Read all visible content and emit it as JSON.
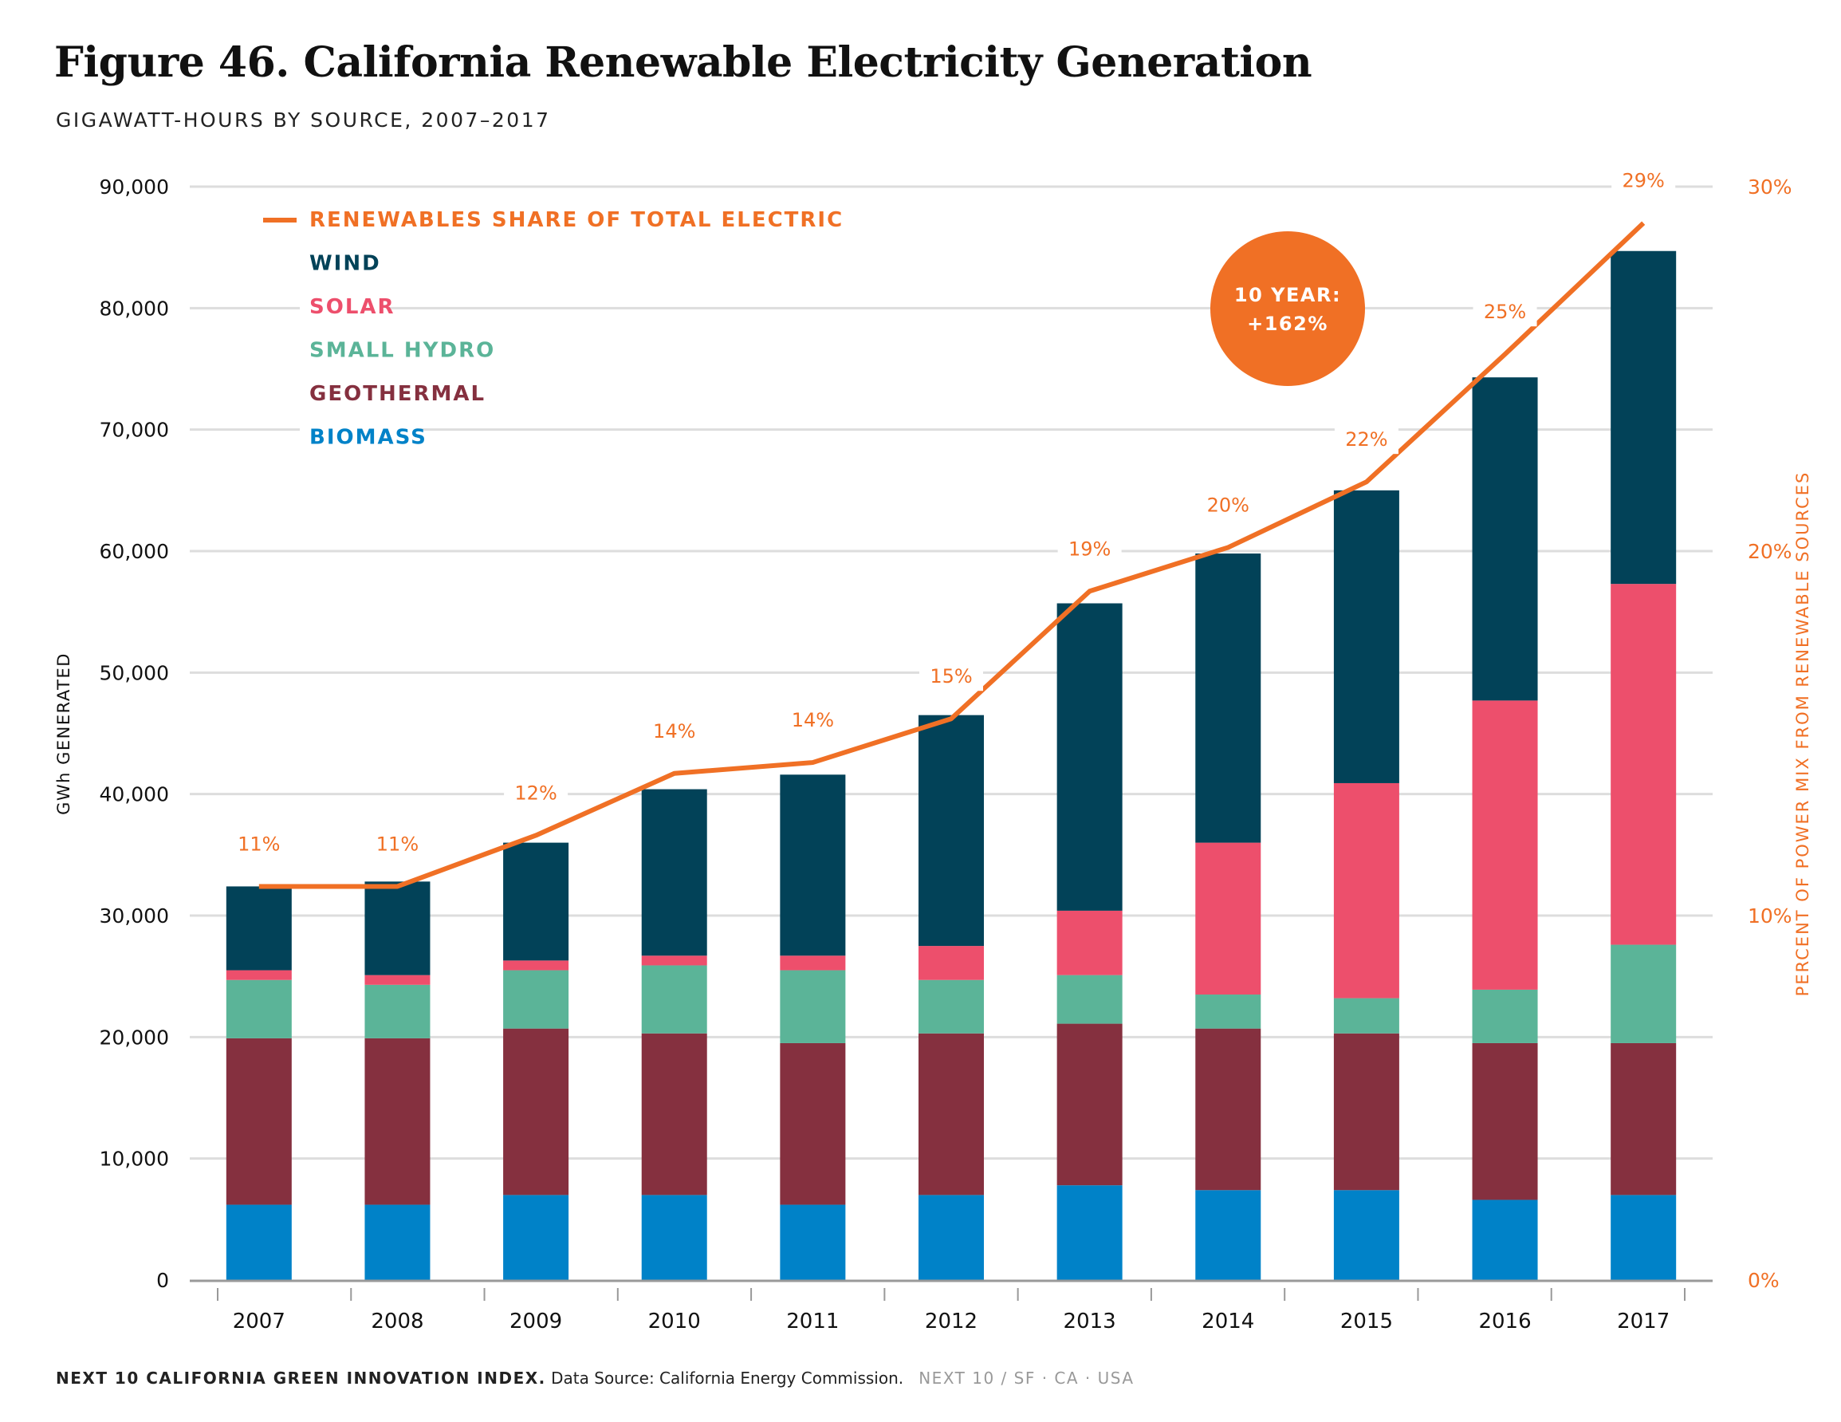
{
  "title": "Figure 46. California Renewable Electricity Generation",
  "subtitle": "GIGAWATT-HOURS BY SOURCE, 2007–2017",
  "footer": {
    "publication": "NEXT 10 CALIFORNIA GREEN INNOVATION INDEX.",
    "source": "Data Source: California Energy Commission.",
    "org": "NEXT 10  /  SF · CA · USA"
  },
  "callout": {
    "line1": "10 YEAR:",
    "line2": "+162%"
  },
  "colors": {
    "wind": "#024258",
    "solar": "#ED4F6C",
    "small_hydro": "#5BB498",
    "geothermal": "#85303F",
    "biomass": "#0082C8",
    "share_line": "#F07025",
    "grid": "#dddddd",
    "axis": "#999999"
  },
  "chart_data": {
    "type": "bar",
    "stacked": true,
    "categories": [
      "2007",
      "2008",
      "2009",
      "2010",
      "2011",
      "2012",
      "2013",
      "2014",
      "2015",
      "2016",
      "2017"
    ],
    "series": [
      {
        "name": "BIOMASS",
        "color_key": "biomass",
        "values": [
          6200,
          6200,
          7000,
          7000,
          6200,
          7000,
          7800,
          7400,
          7400,
          6600,
          7000
        ]
      },
      {
        "name": "GEOTHERMAL",
        "color_key": "geothermal",
        "values": [
          13700,
          13700,
          13700,
          13300,
          13300,
          13300,
          13300,
          13300,
          12900,
          12900,
          12500
        ]
      },
      {
        "name": "SMALL HYDRO",
        "color_key": "small_hydro",
        "values": [
          4800,
          4400,
          4800,
          5600,
          6000,
          4400,
          4000,
          2800,
          2900,
          4400,
          8100
        ]
      },
      {
        "name": "SOLAR",
        "color_key": "solar",
        "values": [
          800,
          800,
          800,
          800,
          1200,
          2800,
          5300,
          12500,
          17700,
          23800,
          29700
        ]
      },
      {
        "name": "WIND",
        "color_key": "wind",
        "values": [
          6900,
          7700,
          9700,
          13700,
          14900,
          19000,
          25300,
          23800,
          24100,
          26600,
          27400
        ]
      }
    ],
    "line_series": {
      "name": "RENEWABLES SHARE OF TOTAL ELECTRIC",
      "color_key": "share_line",
      "axis": "right",
      "values": [
        10.8,
        10.8,
        12.2,
        13.9,
        14.2,
        15.4,
        18.9,
        20.1,
        21.9,
        25.4,
        29.0
      ],
      "labels": [
        "11%",
        "11%",
        "12%",
        "14%",
        "14%",
        "15%",
        "19%",
        "20%",
        "22%",
        "25%",
        "29%"
      ]
    },
    "legend": [
      {
        "label": "RENEWABLES SHARE OF TOTAL ELECTRIC",
        "color_key": "share_line",
        "marker": "line"
      },
      {
        "label": "WIND",
        "color_key": "wind"
      },
      {
        "label": "SOLAR",
        "color_key": "solar"
      },
      {
        "label": "SMALL HYDRO",
        "color_key": "small_hydro"
      },
      {
        "label": "GEOTHERMAL",
        "color_key": "geothermal"
      },
      {
        "label": "BIOMASS",
        "color_key": "biomass"
      }
    ],
    "legend_position": "top-left",
    "ylabel": "GWh GENERATED",
    "ylim": [
      0,
      90000
    ],
    "y_ticks": [
      0,
      10000,
      20000,
      30000,
      40000,
      50000,
      60000,
      70000,
      80000,
      90000
    ],
    "y_tick_labels": [
      "0",
      "10,000",
      "20,000",
      "30,000",
      "40,000",
      "50,000",
      "60,000",
      "70,000",
      "80,000",
      "90,000"
    ],
    "y2label": "PERCENT OF POWER MIX FROM RENEWABLE SOURCES",
    "y2lim": [
      0,
      30
    ],
    "y2_ticks": [
      0,
      10,
      20,
      30
    ],
    "y2_tick_labels": [
      "0%",
      "10%",
      "20%",
      "30%"
    ],
    "grid": true
  }
}
